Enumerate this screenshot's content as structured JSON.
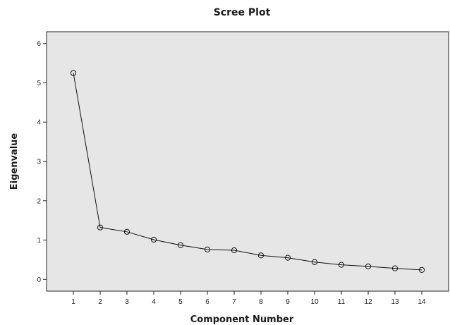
{
  "chart_data": {
    "type": "line",
    "title": "Scree Plot",
    "xlabel": "Component Number",
    "ylabel": "Eigenvalue",
    "x": [
      1,
      2,
      3,
      4,
      5,
      6,
      7,
      8,
      9,
      10,
      11,
      12,
      13,
      14
    ],
    "xticks": [
      "1",
      "2",
      "3",
      "4",
      "5",
      "6",
      "7",
      "8",
      "9",
      "10",
      "11",
      "12",
      "13",
      "14"
    ],
    "yticks": [
      "0",
      "1",
      "2",
      "3",
      "4",
      "5",
      "6"
    ],
    "series": [
      {
        "values": [
          5.25,
          1.32,
          1.21,
          1.01,
          0.87,
          0.76,
          0.74,
          0.61,
          0.55,
          0.44,
          0.37,
          0.33,
          0.28,
          0.24
        ],
        "color": "#111111",
        "marker": "open-circle"
      }
    ],
    "xlim": [
      0,
      15
    ],
    "ylim": [
      -0.3,
      6.3
    ],
    "grid": false,
    "background": "#e6e6e6"
  }
}
